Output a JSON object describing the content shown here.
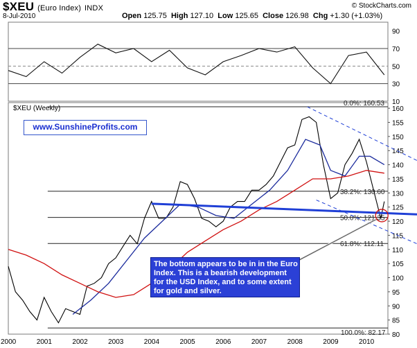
{
  "header": {
    "symbol": "$XEU",
    "name": "(Euro Index)",
    "exchange": "INDX",
    "date": "8-Jul-2010",
    "copyright": "© StockCharts.com",
    "ohlc": {
      "open_label": "Open",
      "open": "125.75",
      "high_label": "High",
      "high": "127.10",
      "low_label": "Low",
      "low": "125.65",
      "close_label": "Close",
      "close": "126.98",
      "chg_label": "Chg",
      "chg": "+1.30 (+1.03%)"
    }
  },
  "weekly_label": "$XEU (Weekly)",
  "url": "www.SunshineProfits.com",
  "annotation": "The bottom appears to be in in the Euro Index. This is a bearish development for the USD Index, and to some extent for gold and silver.",
  "chart_data": [
    {
      "type": "line",
      "panel": "indicator",
      "ylim": [
        10,
        100
      ],
      "yticks": [
        "90",
        "70",
        "50",
        "30",
        "10"
      ],
      "reference_lines": [
        30,
        50,
        70
      ],
      "x": [
        2000.0,
        2000.5,
        2001.0,
        2001.5,
        2002.0,
        2002.5,
        2003.0,
        2003.5,
        2004.0,
        2004.5,
        2005.0,
        2005.5,
        2006.0,
        2006.5,
        2007.0,
        2007.5,
        2008.0,
        2008.5,
        2009.0,
        2009.5,
        2010.0,
        2010.5
      ],
      "values": [
        45,
        38,
        55,
        42,
        60,
        75,
        65,
        70,
        55,
        68,
        48,
        40,
        55,
        62,
        70,
        66,
        72,
        48,
        30,
        62,
        66,
        40
      ]
    },
    {
      "type": "line",
      "panel": "price",
      "ylim": [
        80,
        162
      ],
      "yticks": [
        "160",
        "155",
        "150",
        "145",
        "140",
        "135",
        "130",
        "125",
        "120",
        "115",
        "110",
        "105",
        "100",
        "95",
        "90",
        "85",
        "80"
      ],
      "xticks": [
        "2000",
        "2001",
        "2002",
        "2003",
        "2004",
        "2005",
        "2006",
        "2007",
        "2008",
        "2009",
        "2010"
      ],
      "series": [
        {
          "color": "#000000",
          "x": [
            2000.0,
            2000.2,
            2000.4,
            2000.6,
            2000.8,
            2001.0,
            2001.2,
            2001.4,
            2001.6,
            2001.8,
            2002.0,
            2002.2,
            2002.4,
            2002.6,
            2002.8,
            2003.0,
            2003.2,
            2003.4,
            2003.6,
            2003.8,
            2004.0,
            2004.2,
            2004.4,
            2004.6,
            2004.8,
            2005.0,
            2005.2,
            2005.4,
            2005.6,
            2005.8,
            2006.0,
            2006.2,
            2006.4,
            2006.6,
            2006.8,
            2007.0,
            2007.2,
            2007.4,
            2007.6,
            2007.8,
            2008.0,
            2008.2,
            2008.4,
            2008.6,
            2008.8,
            2009.0,
            2009.2,
            2009.4,
            2009.6,
            2009.8,
            2010.0,
            2010.2,
            2010.4,
            2010.5
          ],
          "values": [
            104,
            95,
            92,
            88,
            85,
            93,
            88,
            84,
            89,
            88,
            87,
            97,
            98,
            100,
            105,
            107,
            111,
            115,
            112,
            121,
            127,
            121,
            121,
            125,
            134,
            133,
            128,
            121,
            120,
            118,
            120,
            125,
            127,
            127,
            131,
            131,
            133,
            136,
            141,
            146,
            147,
            156,
            157,
            155,
            140,
            128,
            130,
            140,
            144,
            149,
            141,
            131,
            121,
            127
          ]
        },
        {
          "color": "#1a2a9c",
          "x": [
            2001.8,
            2002.3,
            2002.8,
            2003.3,
            2003.8,
            2004.3,
            2004.8,
            2005.3,
            2005.8,
            2006.3,
            2006.8,
            2007.3,
            2007.8,
            2008.3,
            2008.7,
            2009.0,
            2009.4,
            2009.8,
            2010.1,
            2010.5
          ],
          "values": [
            87,
            92,
            98,
            106,
            114,
            120,
            126,
            125,
            122,
            121,
            126,
            131,
            138,
            149,
            147,
            138,
            136,
            143,
            143,
            140
          ]
        },
        {
          "color": "#d01010",
          "x": [
            2000.0,
            2000.5,
            2001.0,
            2001.5,
            2002.0,
            2002.5,
            2003.0,
            2003.5,
            2004.0,
            2004.5,
            2005.0,
            2005.5,
            2006.0,
            2006.5,
            2007.0,
            2007.5,
            2008.0,
            2008.5,
            2009.0,
            2009.5,
            2010.0,
            2010.5
          ],
          "values": [
            110,
            108,
            105,
            101,
            98,
            95,
            93,
            94,
            98,
            103,
            109,
            113,
            117,
            120,
            124,
            127,
            131,
            135,
            135,
            136,
            138,
            137
          ]
        }
      ],
      "fibonacci": [
        {
          "label": "0.0%: 160.53",
          "value": 160.53
        },
        {
          "label": "38.2%: 130.60",
          "value": 130.6
        },
        {
          "label": "50.0%: 121.35",
          "value": 121.35
        },
        {
          "label": "61.8%: 112.11",
          "value": 112.11
        },
        {
          "label": "100.0%: 82.17",
          "value": 82.17
        }
      ]
    }
  ]
}
